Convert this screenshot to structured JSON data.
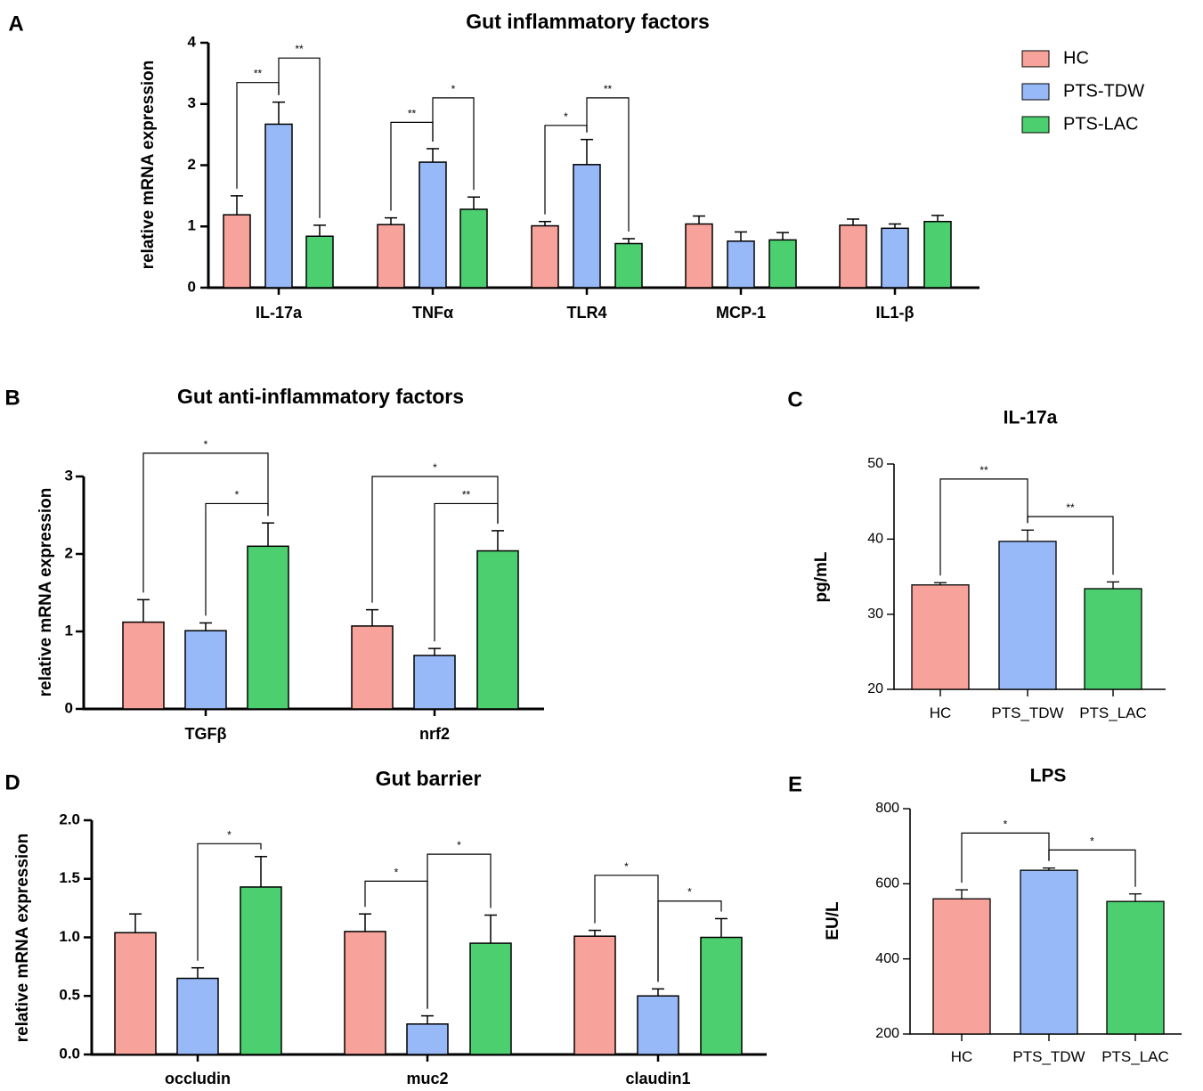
{
  "colors": {
    "HC": "#F7A29A",
    "PTS-TDW": "#98B9F8",
    "PTS-LAC": "#4CCF6E"
  },
  "legend": [
    {
      "label": "HC",
      "color": "#F7A29A"
    },
    {
      "label": "PTS-TDW",
      "color": "#98B9F8"
    },
    {
      "label": "PTS-LAC",
      "color": "#4CCF6E"
    }
  ],
  "chart_data": [
    {
      "id": "A",
      "letter": "A",
      "type": "bar",
      "title": "Gut inflammatory factors",
      "ylabel": "relative mRNA expression",
      "xlabel": "",
      "ylim": [
        0,
        4
      ],
      "yticks": [
        "0",
        "1",
        "2",
        "3",
        "4"
      ],
      "ytick_values": [
        0,
        1,
        2,
        3,
        4
      ],
      "categories": [
        "IL-17a",
        "TNFα",
        "TLR4",
        "MCP-1",
        "IL1-β"
      ],
      "series": [
        {
          "name": "HC",
          "values": [
            1.19,
            1.03,
            1.01,
            1.04,
            1.02
          ],
          "errors": [
            0.31,
            0.11,
            0.07,
            0.13,
            0.1
          ]
        },
        {
          "name": "PTS-TDW",
          "values": [
            2.67,
            2.05,
            2.01,
            0.76,
            0.97
          ],
          "errors": [
            0.36,
            0.22,
            0.41,
            0.15,
            0.07
          ]
        },
        {
          "name": "PTS-LAC",
          "values": [
            0.84,
            1.28,
            0.72,
            0.78,
            1.08
          ],
          "errors": [
            0.18,
            0.2,
            0.08,
            0.12,
            0.1
          ]
        }
      ],
      "significance": [
        {
          "category": 0,
          "from": 0,
          "to": 1,
          "label": "**",
          "level": 3.35
        },
        {
          "category": 0,
          "from": 1,
          "to": 2,
          "label": "**",
          "level": 3.75
        },
        {
          "category": 1,
          "from": 0,
          "to": 1,
          "label": "**",
          "level": 2.7
        },
        {
          "category": 1,
          "from": 1,
          "to": 2,
          "label": "*",
          "level": 3.1
        },
        {
          "category": 2,
          "from": 0,
          "to": 1,
          "label": "*",
          "level": 2.65
        },
        {
          "category": 2,
          "from": 1,
          "to": 2,
          "label": "**",
          "level": 3.1
        }
      ]
    },
    {
      "id": "B",
      "letter": "B",
      "type": "bar",
      "title": "Gut anti-inflammatory factors",
      "ylabel": "relative mRNA expression",
      "xlabel": "",
      "ylim": [
        0,
        3
      ],
      "yticks": [
        "0",
        "1",
        "2",
        "3"
      ],
      "ytick_values": [
        0,
        1,
        2,
        3
      ],
      "categories": [
        "TGFβ",
        "nrf2"
      ],
      "series": [
        {
          "name": "HC",
          "values": [
            1.12,
            1.07
          ],
          "errors": [
            0.29,
            0.21
          ]
        },
        {
          "name": "PTS-TDW",
          "values": [
            1.01,
            0.69
          ],
          "errors": [
            0.1,
            0.09
          ]
        },
        {
          "name": "PTS-LAC",
          "values": [
            2.1,
            2.04
          ],
          "errors": [
            0.3,
            0.26
          ]
        }
      ],
      "significance": [
        {
          "category": 0,
          "from": 0,
          "to": 2,
          "label": "*",
          "level": 3.3
        },
        {
          "category": 0,
          "from": 1,
          "to": 2,
          "label": "*",
          "level": 2.65
        },
        {
          "category": 1,
          "from": 0,
          "to": 2,
          "label": "*",
          "level": 3.0
        },
        {
          "category": 1,
          "from": 1,
          "to": 2,
          "label": "**",
          "level": 2.65
        }
      ]
    },
    {
      "id": "C",
      "letter": "C",
      "type": "bar",
      "title": "IL-17a",
      "ylabel": "pg/mL",
      "xlabel": "",
      "ylim": [
        20,
        50
      ],
      "yticks": [
        "20",
        "30",
        "40",
        "50"
      ],
      "ytick_values": [
        20,
        30,
        40,
        50
      ],
      "categories": [
        "HC",
        "PTS_TDW",
        "PTS_LAC"
      ],
      "values": [
        33.9,
        39.7,
        33.4
      ],
      "errors": [
        0.3,
        1.5,
        0.9
      ],
      "significance": [
        {
          "from": 0,
          "to": 1,
          "label": "**",
          "level": 48.0
        },
        {
          "from": 1,
          "to": 2,
          "label": "**",
          "level": 43.0
        }
      ]
    },
    {
      "id": "D",
      "letter": "D",
      "type": "bar",
      "title": "Gut barrier",
      "ylabel": "relative mRNA expression",
      "xlabel": "",
      "ylim": [
        0,
        2
      ],
      "yticks": [
        "0.0",
        "0.5",
        "1.0",
        "1.5",
        "2.0"
      ],
      "ytick_values": [
        0,
        0.5,
        1,
        1.5,
        2
      ],
      "categories": [
        "occludin",
        "muc2",
        "claudin1"
      ],
      "series": [
        {
          "name": "HC",
          "values": [
            1.04,
            1.05,
            1.01
          ],
          "errors": [
            0.16,
            0.15,
            0.05
          ]
        },
        {
          "name": "PTS-TDW",
          "values": [
            0.65,
            0.26,
            0.5
          ],
          "errors": [
            0.09,
            0.07,
            0.06
          ]
        },
        {
          "name": "PTS-LAC",
          "values": [
            1.43,
            0.95,
            1.0
          ],
          "errors": [
            0.26,
            0.24,
            0.16
          ]
        }
      ],
      "significance": [
        {
          "category": 0,
          "from": 1,
          "to": 2,
          "label": "*",
          "level": 1.8
        },
        {
          "category": 1,
          "from": 0,
          "to": 1,
          "label": "*",
          "level": 1.48
        },
        {
          "category": 1,
          "from": 1,
          "to": 2,
          "label": "*",
          "level": 1.71
        },
        {
          "category": 2,
          "from": 0,
          "to": 1,
          "label": "*",
          "level": 1.53
        },
        {
          "category": 2,
          "from": 1,
          "to": 2,
          "label": "*",
          "level": 1.31
        }
      ]
    },
    {
      "id": "E",
      "letter": "E",
      "type": "bar",
      "title": "LPS",
      "ylabel": "EU/L",
      "xlabel": "",
      "ylim": [
        200,
        800
      ],
      "yticks": [
        "200",
        "400",
        "600",
        "800"
      ],
      "ytick_values": [
        200,
        400,
        600,
        800
      ],
      "categories": [
        "HC",
        "PTS_TDW",
        "PTS_LAC"
      ],
      "values": [
        560,
        636,
        553
      ],
      "errors": [
        24,
        6,
        20
      ],
      "significance": [
        {
          "from": 0,
          "to": 1,
          "label": "*",
          "level": 735
        },
        {
          "from": 1,
          "to": 2,
          "label": "*",
          "level": 690
        }
      ]
    }
  ]
}
